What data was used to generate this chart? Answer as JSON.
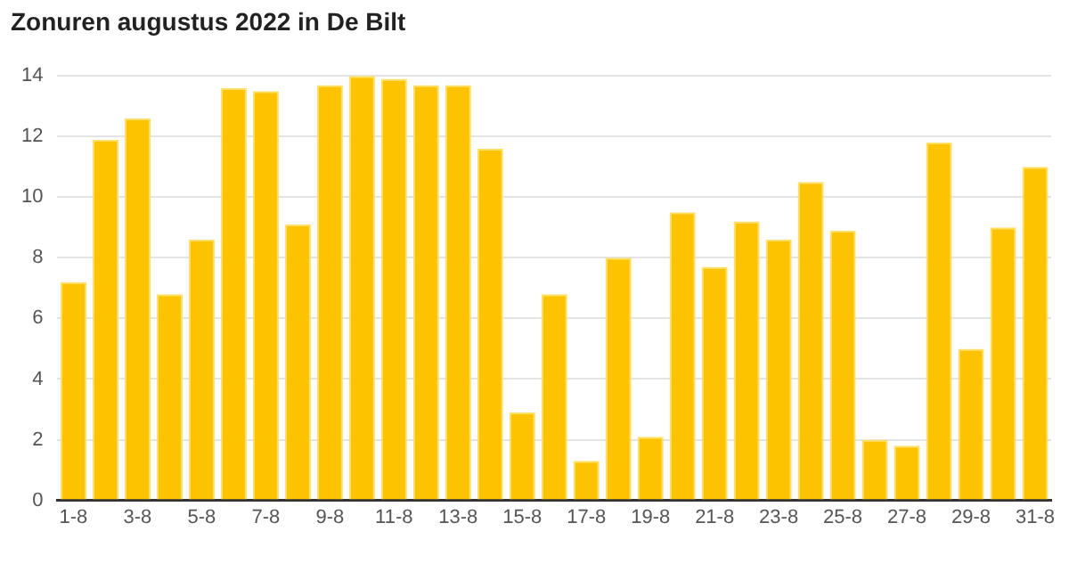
{
  "chart_data": {
    "type": "bar",
    "title": "Zonuren augustus 2022 in De Bilt",
    "categories": [
      "1-8",
      null,
      "3-8",
      null,
      "5-8",
      null,
      "7-8",
      null,
      "9-8",
      null,
      "11-8",
      null,
      "13-8",
      null,
      "15-8",
      null,
      "17-8",
      null,
      "19-8",
      null,
      "21-8",
      null,
      "23-8",
      null,
      "25-8",
      null,
      "27-8",
      null,
      "29-8",
      null,
      "31-8"
    ],
    "values": [
      7.2,
      11.9,
      12.6,
      6.8,
      8.6,
      13.6,
      13.5,
      9.1,
      13.7,
      14.0,
      13.9,
      13.7,
      13.7,
      11.6,
      2.9,
      6.8,
      1.3,
      8.0,
      2.1,
      9.5,
      7.7,
      9.2,
      8.6,
      10.5,
      8.9,
      2.0,
      1.8,
      11.8,
      5.0,
      9.0,
      11.0
    ],
    "color": "#fdc300",
    "ylim": [
      0,
      14
    ],
    "yticks": [
      0,
      2,
      4,
      6,
      8,
      10,
      12,
      14
    ],
    "grid": "y"
  }
}
